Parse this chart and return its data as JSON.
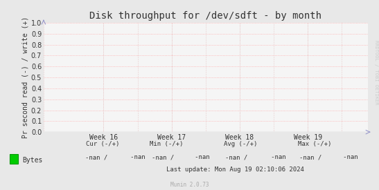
{
  "title": "Disk throughput for /dev/sdft - by month",
  "ylabel": "Pr second read (-) / write (+)",
  "background_color": "#e8e8e8",
  "plot_background_color": "#f5f5f5",
  "grid_color_h": "#ffaaaa",
  "grid_color_v": "#ddaaaa",
  "ylim": [
    0.0,
    1.0
  ],
  "yticks": [
    0.0,
    0.1,
    0.2,
    0.3,
    0.4,
    0.5,
    0.6,
    0.7,
    0.8,
    0.9,
    1.0
  ],
  "xtick_labels": [
    "Week 16",
    "Week 17",
    "Week 18",
    "Week 19"
  ],
  "xtick_positions": [
    0.185,
    0.395,
    0.605,
    0.815
  ],
  "arrow_color": "#9999cc",
  "legend_label": "Bytes",
  "legend_color": "#00cc00",
  "legend_edge_color": "#009900",
  "cur_label": "Cur (-/+)",
  "min_label": "Min (-/+)",
  "avg_label": "Avg (-/+)",
  "max_label": "Max (-/+)",
  "cur_val": "-nan /    -nan",
  "min_val": "-nan /    -nan",
  "avg_val": "-nan /    -nan",
  "max_val": "-nan /    -nan",
  "last_update": "Last update: Mon Aug 19 02:10:06 2024",
  "munin_label": "Munin 2.0.73",
  "rrdtool_label": "RRDTOOL / TOBI OETIKER",
  "title_fontsize": 10,
  "ylabel_fontsize": 7,
  "tick_fontsize": 7,
  "footer_fontsize": 6.5,
  "watermark_fontsize": 5.5,
  "rrdtool_fontsize": 5
}
